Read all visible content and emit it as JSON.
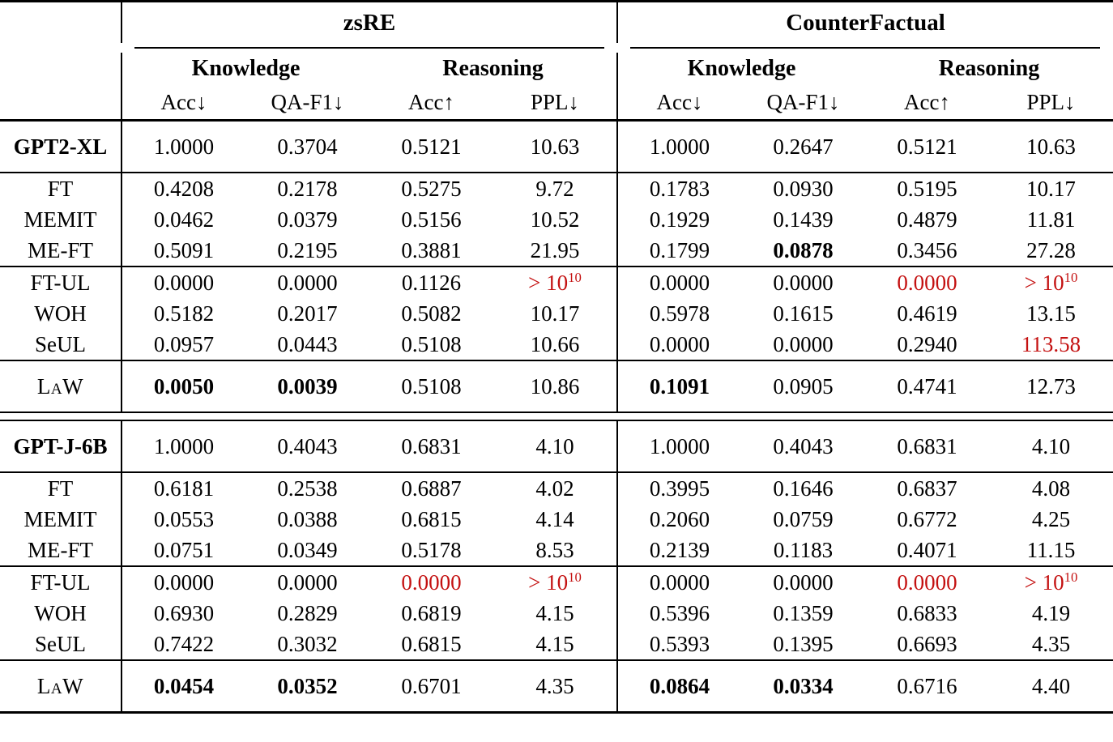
{
  "colors": {
    "text": "#000000",
    "highlight_red": "#c41111",
    "rule": "#000000",
    "background": "#ffffff"
  },
  "header": {
    "groups": [
      {
        "title": "zsRE"
      },
      {
        "title": "CounterFactual"
      }
    ],
    "subgroups": [
      "Knowledge",
      "Reasoning"
    ],
    "metrics": [
      "Acc↓",
      "QA-F1↓",
      "Acc↑",
      "PPL↓"
    ]
  },
  "sections": [
    {
      "groups": [
        {
          "rows": [
            {
              "label": "GPT2-XL",
              "bold_label": true,
              "cells": [
                {
                  "v": "1.0000"
                },
                {
                  "v": "0.3704"
                },
                {
                  "v": "0.5121"
                },
                {
                  "v": "10.63"
                },
                {
                  "v": "1.0000"
                },
                {
                  "v": "0.2647"
                },
                {
                  "v": "0.5121"
                },
                {
                  "v": "10.63"
                }
              ]
            }
          ]
        },
        {
          "rows": [
            {
              "label": "FT",
              "cells": [
                {
                  "v": "0.4208"
                },
                {
                  "v": "0.2178"
                },
                {
                  "v": "0.5275"
                },
                {
                  "v": "9.72"
                },
                {
                  "v": "0.1783"
                },
                {
                  "v": "0.0930"
                },
                {
                  "v": "0.5195"
                },
                {
                  "v": "10.17"
                }
              ]
            },
            {
              "label": "MEMIT",
              "cells": [
                {
                  "v": "0.0462"
                },
                {
                  "v": "0.0379"
                },
                {
                  "v": "0.5156"
                },
                {
                  "v": "10.52"
                },
                {
                  "v": "0.1929"
                },
                {
                  "v": "0.1439"
                },
                {
                  "v": "0.4879"
                },
                {
                  "v": "11.81"
                }
              ]
            },
            {
              "label": "ME-FT",
              "cells": [
                {
                  "v": "0.5091"
                },
                {
                  "v": "0.2195"
                },
                {
                  "v": "0.3881"
                },
                {
                  "v": "21.95"
                },
                {
                  "v": "0.1799"
                },
                {
                  "v": "0.0878",
                  "bold": true
                },
                {
                  "v": "0.3456"
                },
                {
                  "v": "27.28"
                }
              ]
            }
          ]
        },
        {
          "rows": [
            {
              "label": "FT-UL",
              "cells": [
                {
                  "v": "0.0000"
                },
                {
                  "v": "0.0000"
                },
                {
                  "v": "0.1126"
                },
                {
                  "v": "> 10",
                  "sup": "10",
                  "red": true
                },
                {
                  "v": "0.0000"
                },
                {
                  "v": "0.0000"
                },
                {
                  "v": "0.0000",
                  "red": true
                },
                {
                  "v": "> 10",
                  "sup": "10",
                  "red": true
                }
              ]
            },
            {
              "label": "WOH",
              "cells": [
                {
                  "v": "0.5182"
                },
                {
                  "v": "0.2017"
                },
                {
                  "v": "0.5082"
                },
                {
                  "v": "10.17"
                },
                {
                  "v": "0.5978"
                },
                {
                  "v": "0.1615"
                },
                {
                  "v": "0.4619"
                },
                {
                  "v": "13.15"
                }
              ]
            },
            {
              "label": "SeUL",
              "cells": [
                {
                  "v": "0.0957"
                },
                {
                  "v": "0.0443"
                },
                {
                  "v": "0.5108"
                },
                {
                  "v": "10.66"
                },
                {
                  "v": "0.0000"
                },
                {
                  "v": "0.0000"
                },
                {
                  "v": "0.2940"
                },
                {
                  "v": "113.58",
                  "red": true
                }
              ]
            }
          ]
        },
        {
          "rows": [
            {
              "label": "LaW",
              "smallcaps": true,
              "cells": [
                {
                  "v": "0.0050",
                  "bold": true
                },
                {
                  "v": "0.0039",
                  "bold": true
                },
                {
                  "v": "0.5108"
                },
                {
                  "v": "10.86"
                },
                {
                  "v": "0.1091",
                  "bold": true
                },
                {
                  "v": "0.0905"
                },
                {
                  "v": "0.4741"
                },
                {
                  "v": "12.73"
                }
              ]
            }
          ]
        }
      ]
    },
    {
      "groups": [
        {
          "rows": [
            {
              "label": "GPT-J-6B",
              "bold_label": true,
              "cells": [
                {
                  "v": "1.0000"
                },
                {
                  "v": "0.4043"
                },
                {
                  "v": "0.6831"
                },
                {
                  "v": "4.10"
                },
                {
                  "v": "1.0000"
                },
                {
                  "v": "0.4043"
                },
                {
                  "v": "0.6831"
                },
                {
                  "v": "4.10"
                }
              ]
            }
          ]
        },
        {
          "rows": [
            {
              "label": "FT",
              "cells": [
                {
                  "v": "0.6181"
                },
                {
                  "v": "0.2538"
                },
                {
                  "v": "0.6887"
                },
                {
                  "v": "4.02"
                },
                {
                  "v": "0.3995"
                },
                {
                  "v": "0.1646"
                },
                {
                  "v": "0.6837"
                },
                {
                  "v": "4.08"
                }
              ]
            },
            {
              "label": "MEMIT",
              "cells": [
                {
                  "v": "0.0553"
                },
                {
                  "v": "0.0388"
                },
                {
                  "v": "0.6815"
                },
                {
                  "v": "4.14"
                },
                {
                  "v": "0.2060"
                },
                {
                  "v": "0.0759"
                },
                {
                  "v": "0.6772"
                },
                {
                  "v": "4.25"
                }
              ]
            },
            {
              "label": "ME-FT",
              "cells": [
                {
                  "v": "0.0751"
                },
                {
                  "v": "0.0349"
                },
                {
                  "v": "0.5178"
                },
                {
                  "v": "8.53"
                },
                {
                  "v": "0.2139"
                },
                {
                  "v": "0.1183"
                },
                {
                  "v": "0.4071"
                },
                {
                  "v": "11.15"
                }
              ]
            }
          ]
        },
        {
          "rows": [
            {
              "label": "FT-UL",
              "cells": [
                {
                  "v": "0.0000"
                },
                {
                  "v": "0.0000"
                },
                {
                  "v": "0.0000",
                  "red": true
                },
                {
                  "v": "> 10",
                  "sup": "10",
                  "red": true
                },
                {
                  "v": "0.0000"
                },
                {
                  "v": "0.0000"
                },
                {
                  "v": "0.0000",
                  "red": true
                },
                {
                  "v": "> 10",
                  "sup": "10",
                  "red": true
                }
              ]
            },
            {
              "label": "WOH",
              "cells": [
                {
                  "v": "0.6930"
                },
                {
                  "v": "0.2829"
                },
                {
                  "v": "0.6819"
                },
                {
                  "v": "4.15"
                },
                {
                  "v": "0.5396"
                },
                {
                  "v": "0.1359"
                },
                {
                  "v": "0.6833"
                },
                {
                  "v": "4.19"
                }
              ]
            },
            {
              "label": "SeUL",
              "cells": [
                {
                  "v": "0.7422"
                },
                {
                  "v": "0.3032"
                },
                {
                  "v": "0.6815"
                },
                {
                  "v": "4.15"
                },
                {
                  "v": "0.5393"
                },
                {
                  "v": "0.1395"
                },
                {
                  "v": "0.6693"
                },
                {
                  "v": "4.35"
                }
              ]
            }
          ]
        },
        {
          "rows": [
            {
              "label": "LaW",
              "smallcaps": true,
              "cells": [
                {
                  "v": "0.0454",
                  "bold": true
                },
                {
                  "v": "0.0352",
                  "bold": true
                },
                {
                  "v": "0.6701"
                },
                {
                  "v": "4.35"
                },
                {
                  "v": "0.0864",
                  "bold": true
                },
                {
                  "v": "0.0334",
                  "bold": true
                },
                {
                  "v": "0.6716"
                },
                {
                  "v": "4.40"
                }
              ]
            }
          ]
        }
      ]
    }
  ]
}
